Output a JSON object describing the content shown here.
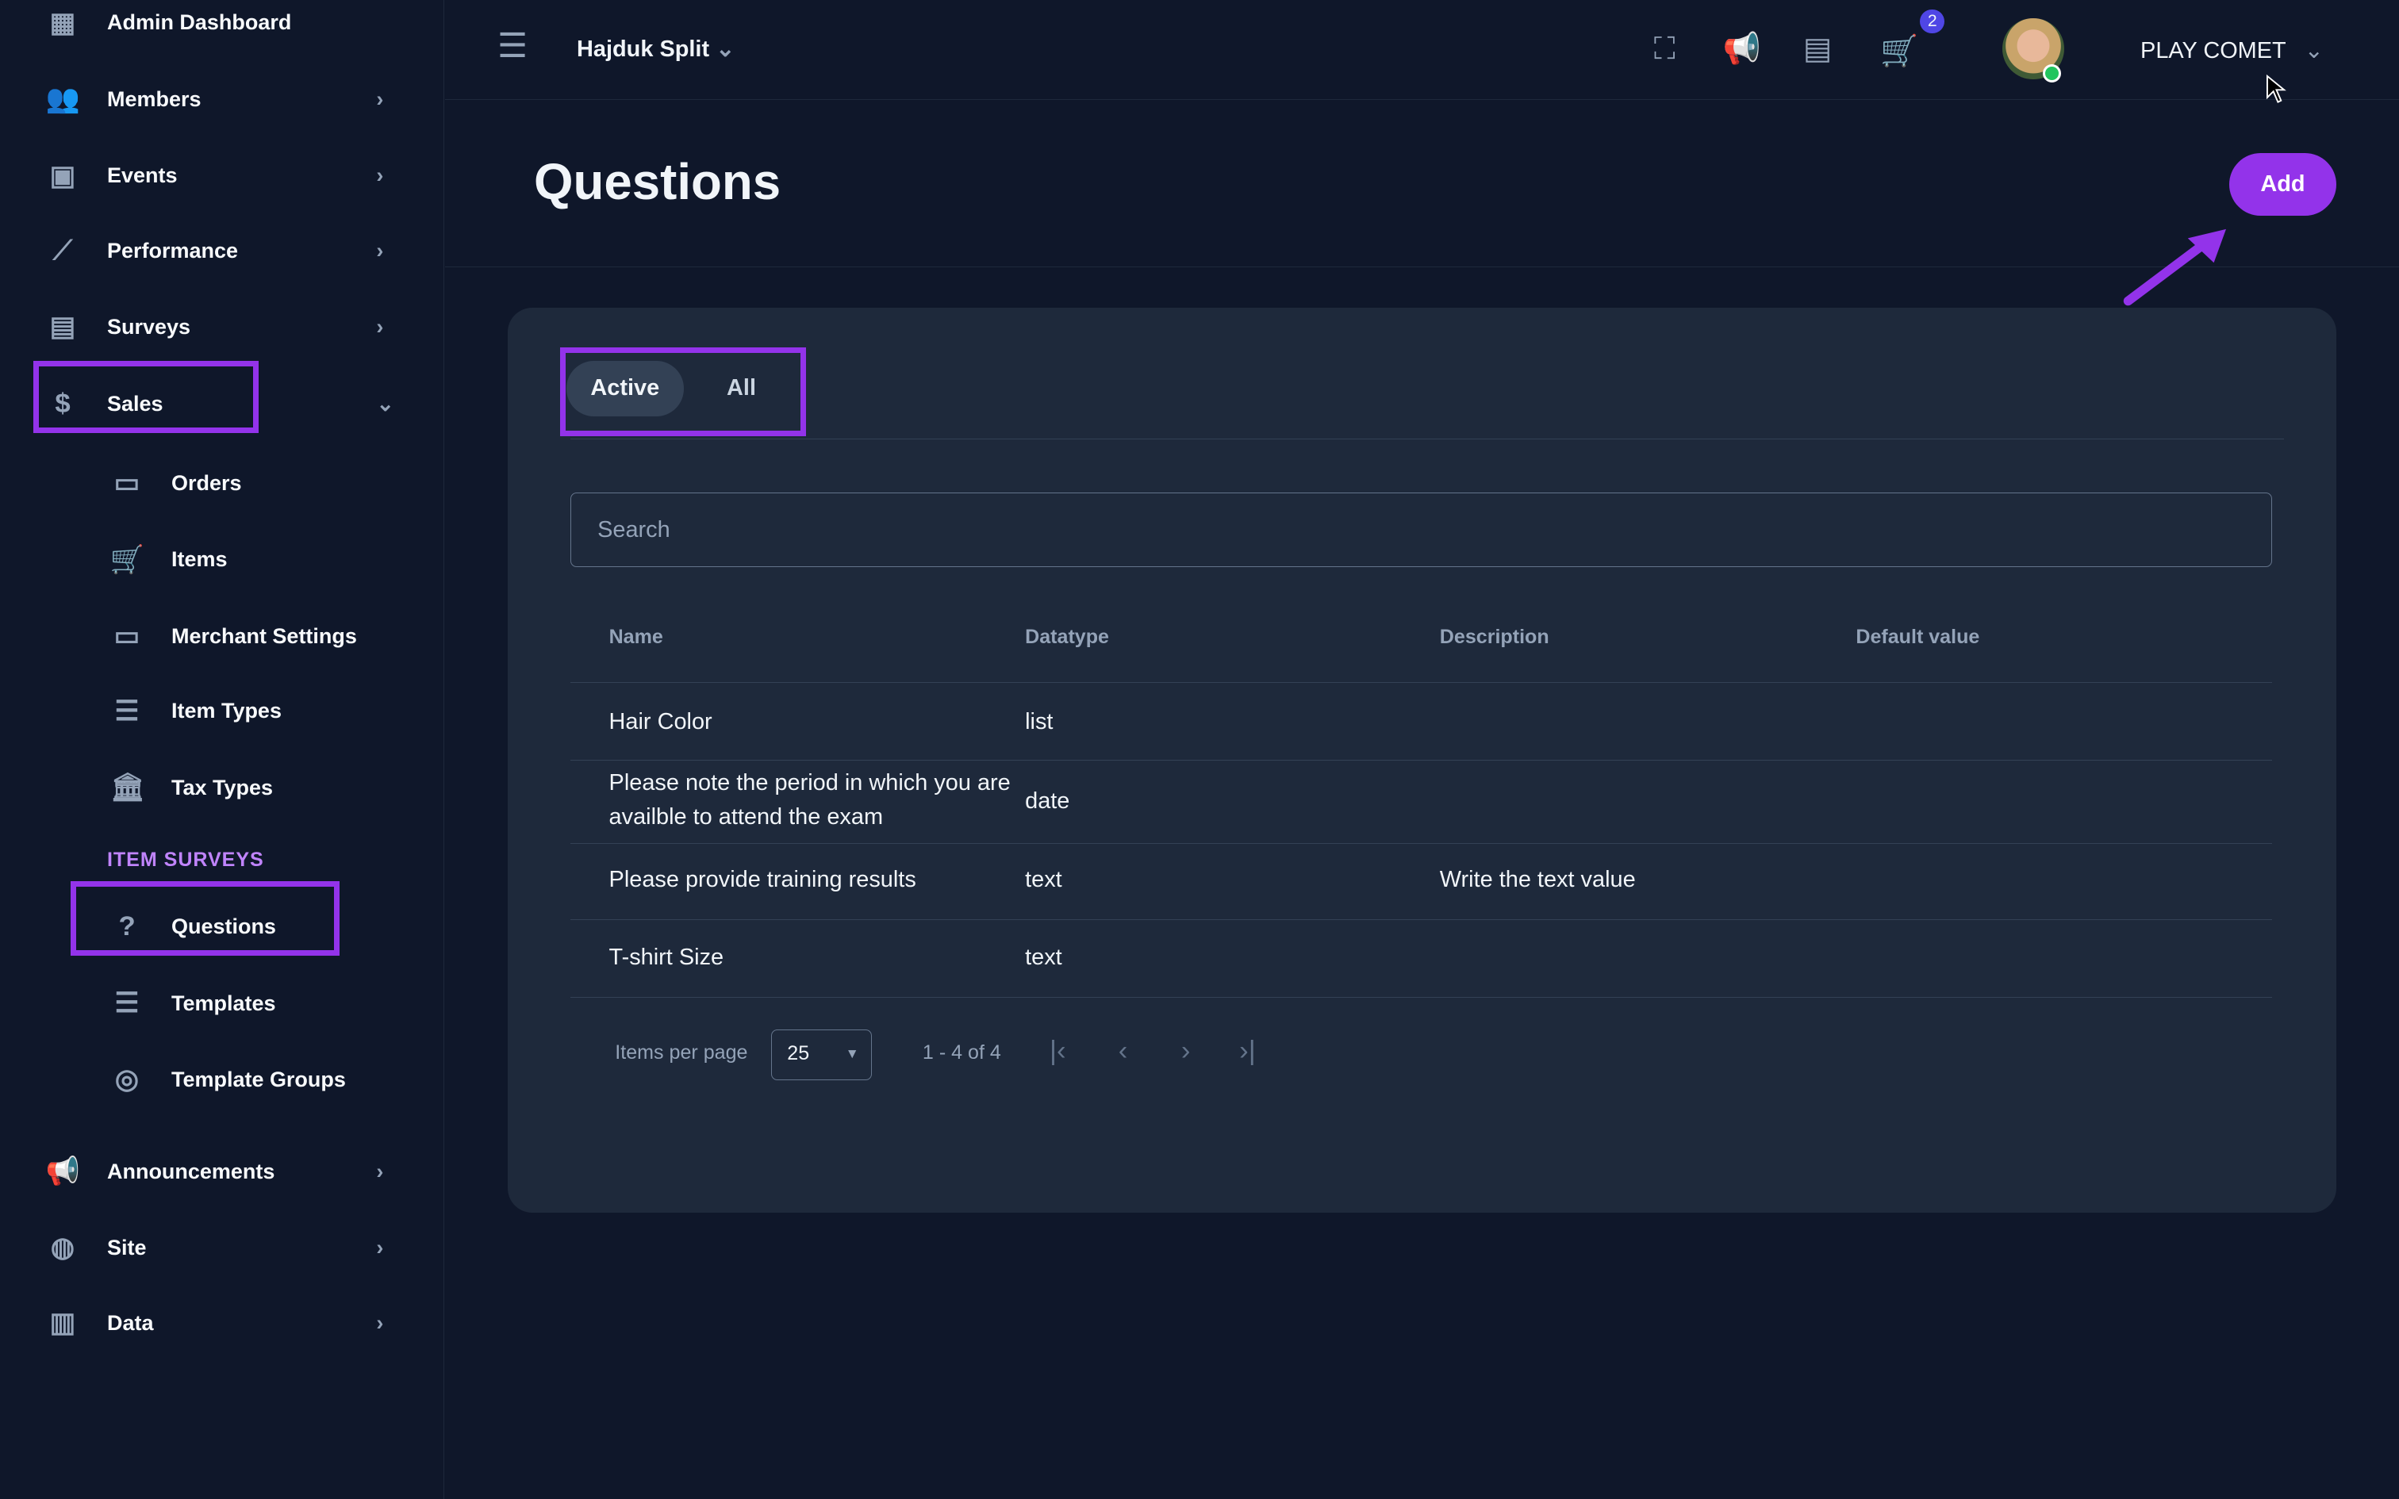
{
  "sidebar": {
    "items": [
      {
        "label": "Admin Dashboard",
        "icon": "dashboard-icon"
      },
      {
        "label": "Members",
        "icon": "people-icon"
      },
      {
        "label": "Events",
        "icon": "calendar-icon"
      },
      {
        "label": "Performance",
        "icon": "trend-icon"
      },
      {
        "label": "Surveys",
        "icon": "forum-icon"
      },
      {
        "label": "Sales",
        "icon": "dollar-icon"
      }
    ],
    "sales_sub": [
      {
        "label": "Orders"
      },
      {
        "label": "Items"
      },
      {
        "label": "Merchant Settings"
      },
      {
        "label": "Item Types"
      },
      {
        "label": "Tax Types"
      }
    ],
    "section": "ITEM SURVEYS",
    "survey_sub": [
      {
        "label": "Questions"
      },
      {
        "label": "Templates"
      },
      {
        "label": "Template Groups"
      }
    ],
    "bottom": [
      {
        "label": "Announcements"
      },
      {
        "label": "Site"
      },
      {
        "label": "Data"
      }
    ]
  },
  "topbar": {
    "org": "Hajduk Split",
    "cart_count": "2",
    "user": "PLAY COMET"
  },
  "page": {
    "title": "Questions",
    "add_label": "Add"
  },
  "tabs": [
    "Active",
    "All"
  ],
  "search": {
    "placeholder": "Search",
    "value": ""
  },
  "table": {
    "headers": [
      "Name",
      "Datatype",
      "Description",
      "Default value"
    ],
    "rows": [
      [
        "Hair Color",
        "list",
        "",
        ""
      ],
      [
        "Please note the period in which you are availble to attend the exam",
        "date",
        "",
        ""
      ],
      [
        "Please provide training results",
        "text",
        "Write the text value",
        ""
      ],
      [
        "T-shirt Size",
        "text",
        "",
        ""
      ]
    ]
  },
  "pagination": {
    "label": "Items per page",
    "per_page": "25",
    "range": "1 - 4 of 4"
  },
  "colors": {
    "accent": "#9333ea",
    "bg": "#0f172a",
    "card": "#1e293b",
    "badge": "#4f46e5",
    "online": "#22c55e"
  }
}
